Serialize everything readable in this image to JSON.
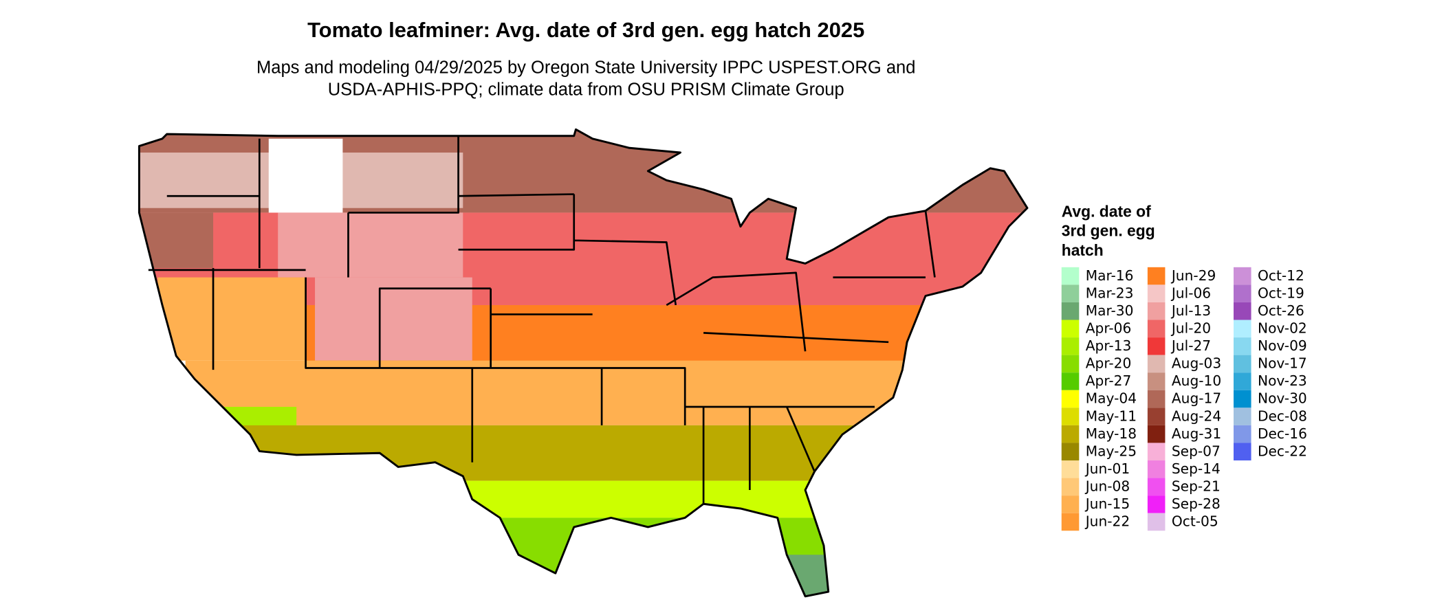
{
  "title": "Tomato leafminer: Avg. date of 3rd gen. egg hatch 2025",
  "subtitle": [
    "Maps and modeling 04/29/2025 by Oregon State University IPPC USPEST.ORG and",
    "USDA-APHIS-PPQ; climate data from OSU PRISM Climate Group"
  ],
  "legend": {
    "title": [
      "Avg. date of",
      "3rd gen. egg",
      "hatch"
    ],
    "items": [
      {
        "label": "Mar-16",
        "color": "#b3ffcc"
      },
      {
        "label": "Mar-23",
        "color": "#8fcf9a"
      },
      {
        "label": "Mar-30",
        "color": "#6aa870"
      },
      {
        "label": "Apr-06",
        "color": "#ccff00"
      },
      {
        "label": "Apr-13",
        "color": "#aaee00"
      },
      {
        "label": "Apr-20",
        "color": "#88dd00"
      },
      {
        "label": "Apr-27",
        "color": "#55cc00"
      },
      {
        "label": "May-04",
        "color": "#ffff00"
      },
      {
        "label": "May-11",
        "color": "#dddd00"
      },
      {
        "label": "May-18",
        "color": "#bbaa00"
      },
      {
        "label": "May-25",
        "color": "#998800"
      },
      {
        "label": "Jun-01",
        "color": "#ffdd99"
      },
      {
        "label": "Jun-08",
        "color": "#ffc877"
      },
      {
        "label": "Jun-15",
        "color": "#ffb050"
      },
      {
        "label": "Jun-22",
        "color": "#ff9933"
      },
      {
        "label": "Jun-29",
        "color": "#ff8020"
      },
      {
        "label": "Jul-06",
        "color": "#f5c6c6"
      },
      {
        "label": "Jul-13",
        "color": "#f0a0a0"
      },
      {
        "label": "Jul-20",
        "color": "#f06666"
      },
      {
        "label": "Jul-27",
        "color": "#f03838"
      },
      {
        "label": "Aug-03",
        "color": "#e0b8b0"
      },
      {
        "label": "Aug-10",
        "color": "#c89080"
      },
      {
        "label": "Aug-17",
        "color": "#b06858"
      },
      {
        "label": "Aug-24",
        "color": "#984030"
      },
      {
        "label": "Aug-31",
        "color": "#802010"
      },
      {
        "label": "Sep-07",
        "color": "#f8b0d8"
      },
      {
        "label": "Sep-14",
        "color": "#f080e0"
      },
      {
        "label": "Sep-21",
        "color": "#f050f0"
      },
      {
        "label": "Sep-28",
        "color": "#f020f8"
      },
      {
        "label": "Oct-05",
        "color": "#e0c0e8"
      },
      {
        "label": "Oct-12",
        "color": "#cc90d8"
      },
      {
        "label": "Oct-19",
        "color": "#b070cc"
      },
      {
        "label": "Oct-26",
        "color": "#9848b8"
      },
      {
        "label": "Nov-02",
        "color": "#b0eeff"
      },
      {
        "label": "Nov-09",
        "color": "#88d8f0"
      },
      {
        "label": "Nov-17",
        "color": "#60c0e0"
      },
      {
        "label": "Nov-23",
        "color": "#30a8d8"
      },
      {
        "label": "Nov-30",
        "color": "#0090d0"
      },
      {
        "label": "Dec-08",
        "color": "#a0c0e0"
      },
      {
        "label": "Dec-16",
        "color": "#8098e8"
      },
      {
        "label": "Dec-22",
        "color": "#5060f0"
      }
    ]
  }
}
